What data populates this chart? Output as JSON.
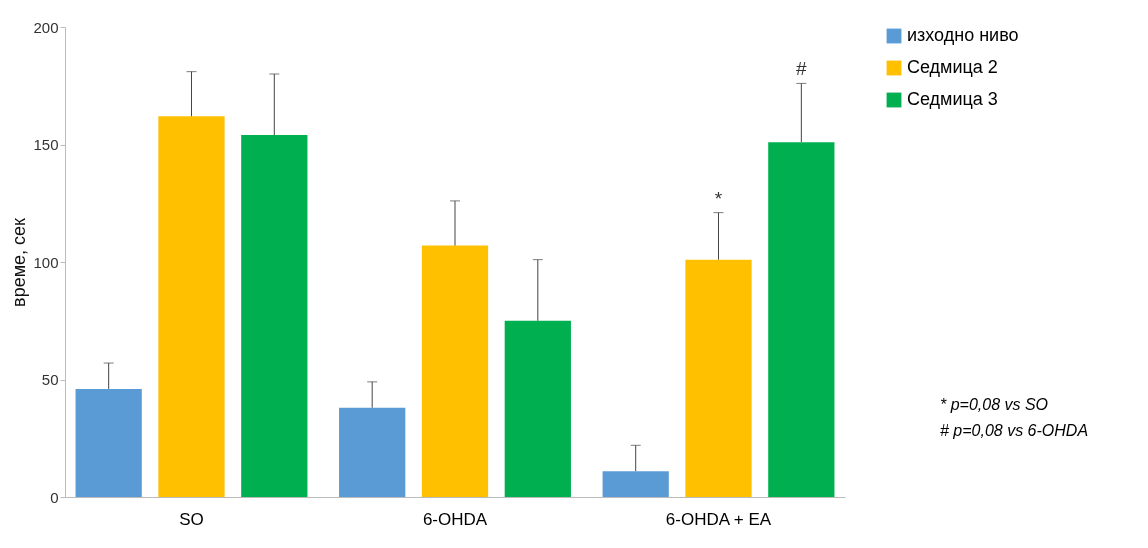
{
  "chart_data": {
    "type": "bar",
    "ylabel": "време, сек",
    "categories": [
      "SO",
      "6-OHDA",
      "6-OHDA + EA"
    ],
    "series": [
      {
        "name": "изходно ниво",
        "color": "#5b9bd5",
        "values": [
          46,
          38,
          11
        ],
        "errors": [
          [
            46,
            57
          ],
          [
            38,
            49
          ],
          [
            11,
            22
          ]
        ]
      },
      {
        "name": "Седмица 2",
        "color": "#ffc000",
        "values": [
          162,
          107,
          101
        ],
        "errors": [
          [
            162,
            181
          ],
          [
            107,
            126
          ],
          [
            101,
            121
          ]
        ]
      },
      {
        "name": "Седмица 3",
        "color": "#00b050",
        "values": [
          154,
          75,
          151
        ],
        "errors": [
          [
            154,
            180
          ],
          [
            75,
            101
          ],
          [
            151,
            176
          ]
        ]
      }
    ],
    "ylim": [
      0,
      200
    ],
    "yticks": [
      0,
      50,
      100,
      150,
      200
    ],
    "grid": false,
    "legend": "right",
    "annotations": [
      "*",
      "#",
      "* p=0,08 vs SO",
      "# p=0,08 vs 6-OHDA"
    ]
  }
}
